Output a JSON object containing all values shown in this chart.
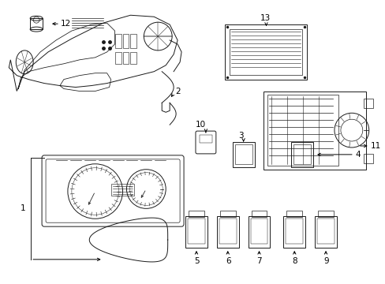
{
  "background_color": "#ffffff",
  "line_color": "#1a1a1a",
  "fig_width": 4.89,
  "fig_height": 3.6,
  "dpi": 100,
  "label_fontsize": 7.5,
  "lw": 0.7
}
